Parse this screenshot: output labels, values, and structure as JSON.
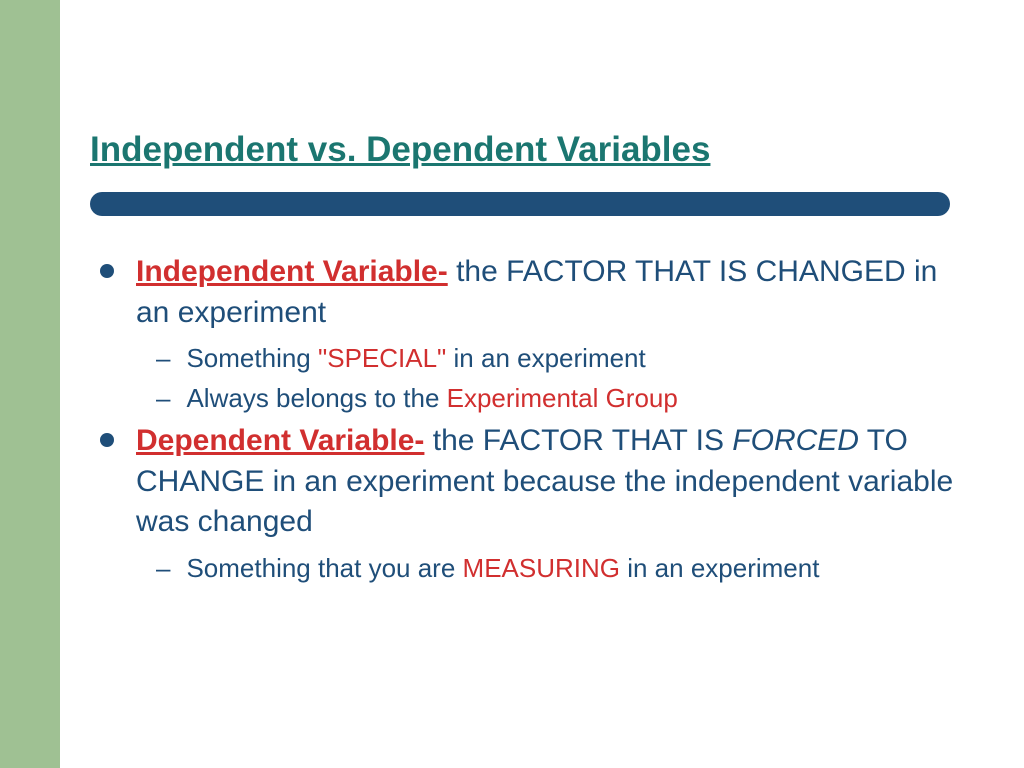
{
  "colors": {
    "stripe": "#9fc193",
    "title": "#1b7670",
    "bar": "#1f4e79",
    "body": "#1f4e79",
    "highlight": "#d12f2f",
    "bullet": "#1f4e79"
  },
  "title": "Independent vs. Dependent Variables",
  "items": [
    {
      "term": "Independent Variable-",
      "rest": " the FACTOR THAT IS CHANGED in an experiment",
      "subs": [
        {
          "pre": "Something ",
          "hl": "\"SPECIAL\"",
          "post": " in an experiment"
        },
        {
          "pre": "Always belongs to the ",
          "hl": "Experimental Group",
          "post": ""
        }
      ]
    },
    {
      "term": "Dependent Variable-",
      "rest_parts": {
        "a": " the FACTOR THAT IS ",
        "italic": "FORCED",
        "b": " TO CHANGE in an experiment because the independent variable was changed"
      },
      "subs": [
        {
          "pre": "Something that you are ",
          "hl": "MEASURING",
          "post": " in an experiment"
        }
      ]
    }
  ]
}
